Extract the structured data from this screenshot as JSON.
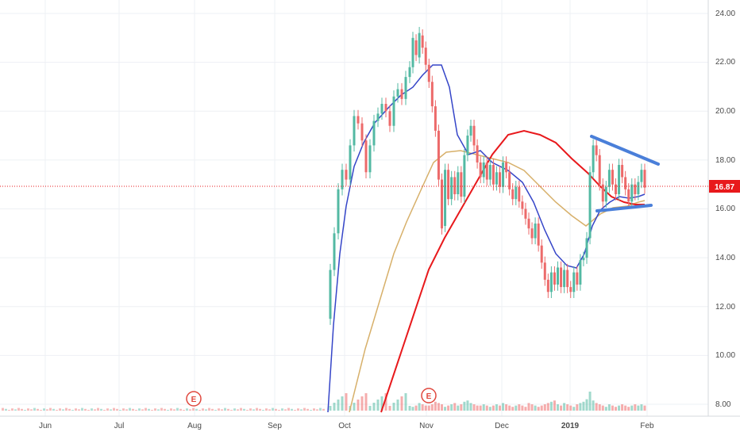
{
  "chart_data": {
    "type": "candlestick",
    "x_ticks": [
      "Jun",
      "Jul",
      "Aug",
      "Sep",
      "Oct",
      "Nov",
      "Dec",
      "2019",
      "Feb"
    ],
    "y_ticks": [
      "24.00",
      "22.00",
      "20.00",
      "18.00",
      "16.00",
      "14.00",
      "12.00",
      "10.00",
      "8.00"
    ],
    "ylim": [
      7.8,
      24.3
    ],
    "last_price": 16.87,
    "last_price_label": "16.87",
    "earnings_markers": [
      {
        "label": "E",
        "date_index": 44
      },
      {
        "label": "E",
        "date_index": 108
      }
    ],
    "candles": [
      {
        "o": 21.8,
        "c": 23.0
      },
      {
        "o": 22.9,
        "c": 22.3
      },
      {
        "o": 22.2,
        "c": 23.2
      },
      {
        "o": 23.1,
        "c": 22.6
      },
      {
        "o": 22.6,
        "c": 21.9
      },
      {
        "o": 21.9,
        "c": 21.2
      },
      {
        "o": 21.2,
        "c": 20.2
      },
      {
        "o": 20.2,
        "c": 19.2
      },
      {
        "o": 19.2,
        "c": 17.2
      },
      {
        "o": 17.2,
        "c": 15.2
      },
      {
        "o": 15.3,
        "c": 17.6
      },
      {
        "o": 17.6,
        "c": 16.4
      },
      {
        "o": 16.4,
        "c": 17.3
      },
      {
        "o": 17.3,
        "c": 16.6
      },
      {
        "o": 16.6,
        "c": 17.5
      },
      {
        "o": 17.5,
        "c": 16.5
      },
      {
        "o": 16.5,
        "c": 18.2
      },
      {
        "o": 18.2,
        "c": 19.0
      },
      {
        "o": 19.0,
        "c": 19.4
      },
      {
        "o": 19.4,
        "c": 18.6
      },
      {
        "o": 18.6,
        "c": 17.9
      },
      {
        "o": 17.9,
        "c": 17.3
      },
      {
        "o": 17.3,
        "c": 17.9
      },
      {
        "o": 17.9,
        "c": 17.2
      },
      {
        "o": 17.2,
        "c": 17.8
      },
      {
        "o": 17.8,
        "c": 17.0
      },
      {
        "o": 17.0,
        "c": 17.5
      },
      {
        "o": 17.5,
        "c": 16.9
      },
      {
        "o": 16.9,
        "c": 17.9
      },
      {
        "o": 17.9,
        "c": 17.5
      },
      {
        "o": 17.5,
        "c": 16.8
      },
      {
        "o": 16.8,
        "c": 16.4
      },
      {
        "o": 16.4,
        "c": 16.9
      },
      {
        "o": 16.9,
        "c": 16.3
      },
      {
        "o": 16.3,
        "c": 16.0
      },
      {
        "o": 16.0,
        "c": 15.6
      },
      {
        "o": 15.6,
        "c": 15.2
      },
      {
        "o": 15.2,
        "c": 14.8
      },
      {
        "o": 14.8,
        "c": 15.4
      },
      {
        "o": 15.4,
        "c": 14.5
      },
      {
        "o": 14.5,
        "c": 13.8
      },
      {
        "o": 13.8,
        "c": 13.1
      },
      {
        "o": 13.1,
        "c": 12.6
      },
      {
        "o": 12.6,
        "c": 13.4
      },
      {
        "o": 13.4,
        "c": 12.9
      },
      {
        "o": 12.9,
        "c": 13.6
      },
      {
        "o": 13.6,
        "c": 12.8
      },
      {
        "o": 12.8,
        "c": 13.5
      },
      {
        "o": 13.5,
        "c": 12.8
      },
      {
        "o": 12.8,
        "c": 12.6
      },
      {
        "o": 12.6,
        "c": 13.4
      },
      {
        "o": 13.4,
        "c": 12.9
      },
      {
        "o": 12.9,
        "c": 13.9
      },
      {
        "o": 13.9,
        "c": 14.0
      },
      {
        "o": 14.0,
        "c": 14.8
      },
      {
        "o": 14.8,
        "c": 17.5
      },
      {
        "o": 17.5,
        "c": 18.6
      },
      {
        "o": 18.6,
        "c": 18.2
      },
      {
        "o": 18.2,
        "c": 17.0
      },
      {
        "o": 17.0,
        "c": 16.3
      },
      {
        "o": 16.3,
        "c": 16.9
      },
      {
        "o": 16.9,
        "c": 17.6
      },
      {
        "o": 17.6,
        "c": 17.0
      },
      {
        "o": 17.0,
        "c": 16.6
      },
      {
        "o": 16.6,
        "c": 17.8
      },
      {
        "o": 17.8,
        "c": 17.3
      },
      {
        "o": 17.3,
        "c": 16.8
      },
      {
        "o": 16.8,
        "c": 16.3
      },
      {
        "o": 16.3,
        "c": 17.0
      },
      {
        "o": 17.0,
        "c": 16.6
      },
      {
        "o": 16.6,
        "c": 17.1
      },
      {
        "o": 17.1,
        "c": 17.6
      },
      {
        "o": 17.6,
        "c": 16.87
      }
    ],
    "volumes": [
      3,
      4,
      6,
      5,
      4,
      4,
      5,
      7,
      6,
      5,
      3,
      4,
      5,
      6,
      4,
      5,
      7,
      8,
      6,
      5,
      4,
      4,
      5,
      4,
      3,
      4,
      5,
      4,
      6,
      5,
      4,
      3,
      4,
      5,
      4,
      3,
      6,
      5,
      4,
      3,
      4,
      5,
      6,
      7,
      8,
      5,
      4,
      6,
      5,
      4,
      3,
      5,
      6,
      7,
      9,
      15,
      8,
      6,
      5,
      4,
      3,
      5,
      4,
      3,
      4,
      5,
      4,
      3,
      4,
      5,
      4,
      5,
      4
    ]
  },
  "colors": {
    "up": "#53b9a3",
    "down": "#ec6a6a",
    "ma_fast": "#3545c8",
    "ma_mid": "#d7b06a",
    "ma_slow": "#e8191c",
    "trendline": "#4a7fd9",
    "price_line": "#e8191c"
  }
}
